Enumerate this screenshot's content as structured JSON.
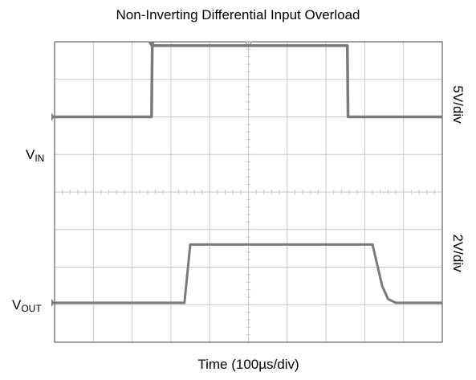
{
  "chart_data": {
    "type": "line",
    "title": "Non-Inverting Differential Input Overload",
    "xlabel": "Time (100µs/div)",
    "x_divisions": 10,
    "y_divisions": 8,
    "grid": true,
    "line_color": "#7a7a7a",
    "grid_color": "#c8c8c8",
    "series": [
      {
        "name": "VIN",
        "scale_label": "5V/div",
        "label_main": "V",
        "label_sub": "IN",
        "x": [
          0,
          2.5,
          2.52,
          7.55,
          7.57,
          10
        ],
        "y": [
          6.0,
          6.0,
          7.9,
          7.9,
          6.0,
          6.0
        ]
      },
      {
        "name": "VOUT",
        "scale_label": "2V/div",
        "label_main": "V",
        "label_sub": "OUT",
        "x": [
          0,
          3.35,
          3.5,
          8.2,
          8.45,
          8.6,
          8.8,
          10
        ],
        "y": [
          1.05,
          1.05,
          2.6,
          2.6,
          1.5,
          1.15,
          1.05,
          1.05
        ]
      }
    ],
    "trigger_markers": [
      2.5,
      5.0
    ]
  }
}
